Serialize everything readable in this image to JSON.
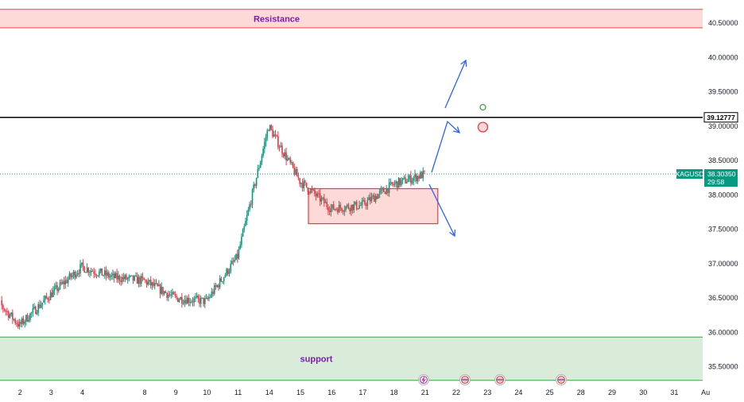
{
  "chart_data": {
    "type": "candlestick",
    "symbol": "XAGUSD",
    "last_price": "38.30350",
    "countdown": "29:58",
    "line_level_label": "39.12777",
    "line_level": 39.12777,
    "y_ticks": [
      "40.50000",
      "40.00000",
      "39.50000",
      "39.00000",
      "38.50000",
      "38.00000",
      "37.50000",
      "37.00000",
      "36.50000",
      "36.00000",
      "35.50000"
    ],
    "ylim": [
      35.28,
      40.85
    ],
    "x_ticks": [
      "2",
      "3",
      "4",
      "8",
      "9",
      "10",
      "11",
      "14",
      "15",
      "16",
      "17",
      "18",
      "21",
      "22",
      "23",
      "24",
      "25",
      "28",
      "29",
      "30",
      "31",
      "Au"
    ],
    "zones": [
      {
        "name": "resistance",
        "label": "Resistance",
        "from": 40.43,
        "to": 40.7,
        "color": "#f44336"
      },
      {
        "name": "support",
        "label": "support",
        "from": 35.3,
        "to": 35.93,
        "color": "#43a047"
      }
    ],
    "consolidation_box": {
      "from_day": "15",
      "to_day": "21",
      "low": 37.58,
      "high": 38.09
    },
    "price_path": [
      {
        "x": "1",
        "y": 36.6
      },
      {
        "x": "2",
        "y": 36.1
      },
      {
        "x": "3",
        "y": 36.55
      },
      {
        "x": "4",
        "y": 36.95
      },
      {
        "x": "7",
        "y": 36.8
      },
      {
        "x": "8",
        "y": 36.75
      },
      {
        "x": "9",
        "y": 36.5
      },
      {
        "x": "10",
        "y": 36.45
      },
      {
        "x": "11",
        "y": 37.1
      },
      {
        "x": "14",
        "y": 39.0
      },
      {
        "x": "15",
        "y": 38.2
      },
      {
        "x": "16",
        "y": 37.8
      },
      {
        "x": "17",
        "y": 37.85
      },
      {
        "x": "18",
        "y": 38.15
      },
      {
        "x": "21",
        "y": 38.3
      }
    ],
    "colors": {
      "up": "#089981",
      "down": "#f23645",
      "arrows": "#2962ff"
    }
  }
}
